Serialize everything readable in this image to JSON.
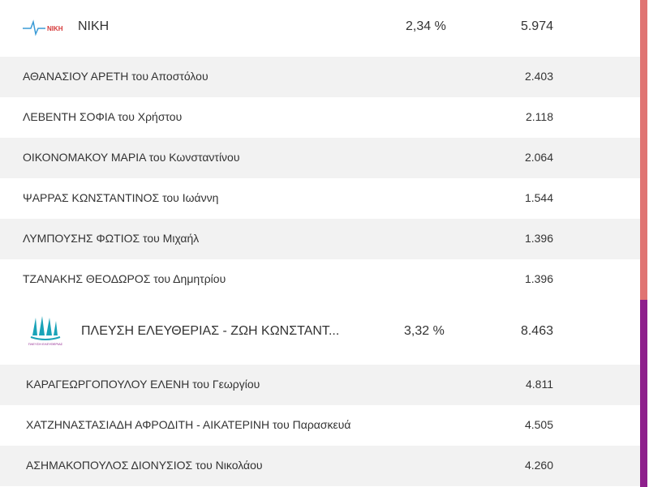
{
  "sections": [
    {
      "color": "#e07472",
      "party": {
        "logo_text": "NIKH",
        "name": "ΝΙΚΗ",
        "percent": "2,34 %",
        "votes": "5.974"
      },
      "candidates": [
        {
          "name": "ΑΘΑΝΑΣΙΟΥ ΑΡΕΤΗ του Αποστόλου",
          "votes": "2.403"
        },
        {
          "name": "ΛΕΒΕΝΤΗ ΣΟΦΙΑ του Χρήστου",
          "votes": "2.118"
        },
        {
          "name": "ΟΙΚΟΝΟΜΑΚΟΥ ΜΑΡΙΑ του Κωνσταντίνου",
          "votes": "2.064"
        },
        {
          "name": "ΨΑΡΡΑΣ ΚΩΝΣΤΑΝΤΙΝΟΣ του Ιωάννη",
          "votes": "1.544"
        },
        {
          "name": "ΛΥΜΠΟΥΣΗΣ ΦΩΤΙΟΣ του Μιχαήλ",
          "votes": "1.396"
        },
        {
          "name": "ΤΖΑΝΑΚΗΣ ΘΕΟΔΩΡΟΣ του Δημητρίου",
          "votes": "1.396"
        }
      ]
    },
    {
      "color": "#8e1f8c",
      "party": {
        "logo_text": "ΠΛΕΥΣΗ ΕΛΕΥΘΕΡΙΑΣ",
        "name": "ΠΛΕΥΣΗ ΕΛΕΥΘΕΡΙΑΣ - ΖΩΗ ΚΩΝΣΤΑΝΤ...",
        "percent": "3,32 %",
        "votes": "8.463"
      },
      "candidates": [
        {
          "name": "ΚΑΡΑΓΕΩΡΓΟΠΟΥΛΟΥ ΕΛΕΝΗ του Γεωργίου",
          "votes": "4.811"
        },
        {
          "name": "ΧΑΤΖΗΝΑΣΤΑΣΙΑΔΗ ΑΦΡΟΔΙΤΗ - ΑΙΚΑΤΕΡΙΝΗ του Παρασκευά",
          "votes": "4.505"
        },
        {
          "name": "ΑΣΗΜΑΚΟΠΟΥΛΟΣ ΔΙΟΝΥΣΙΟΣ του Νικολάου",
          "votes": "4.260"
        }
      ]
    }
  ]
}
